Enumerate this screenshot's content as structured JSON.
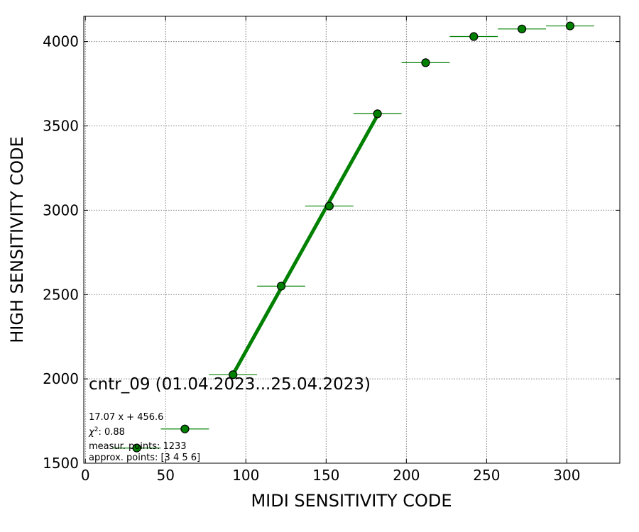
{
  "chart_data": {
    "type": "scatter",
    "title": "",
    "xlabel": "MIDI SENSITIVITY CODE",
    "ylabel": "HIGH SENSITIVITY CODE",
    "xlim": [
      -1,
      333
    ],
    "ylim": [
      1500,
      4150
    ],
    "xticks": [
      0,
      50,
      100,
      150,
      200,
      250,
      300
    ],
    "yticks": [
      1500,
      2000,
      2500,
      3000,
      3500,
      4000
    ],
    "grid": true,
    "series": [
      {
        "type": "errorbar-scatter",
        "color": "#008000",
        "x": [
          32,
          62,
          92,
          122,
          152,
          182,
          212,
          242,
          272,
          302
        ],
        "y": [
          1590,
          1703,
          2025,
          2550,
          3025,
          3572,
          3875,
          4030,
          4075,
          4093
        ],
        "xerr": 15
      },
      {
        "type": "fit-line",
        "color": "#008000",
        "x": [
          92,
          182
        ],
        "y": [
          2027,
          3563
        ]
      }
    ],
    "annotations": {
      "title": "cntr_09 (01.04.2023...25.04.2023)",
      "fit": "17.07 x + 456.6",
      "chi2_label": "χ",
      "chi2_exp": "2",
      "chi2_value": ": 0.88",
      "measur_points": "measur. points: 1233",
      "approx_points": "approx. points: [3 4 5 6]"
    }
  }
}
